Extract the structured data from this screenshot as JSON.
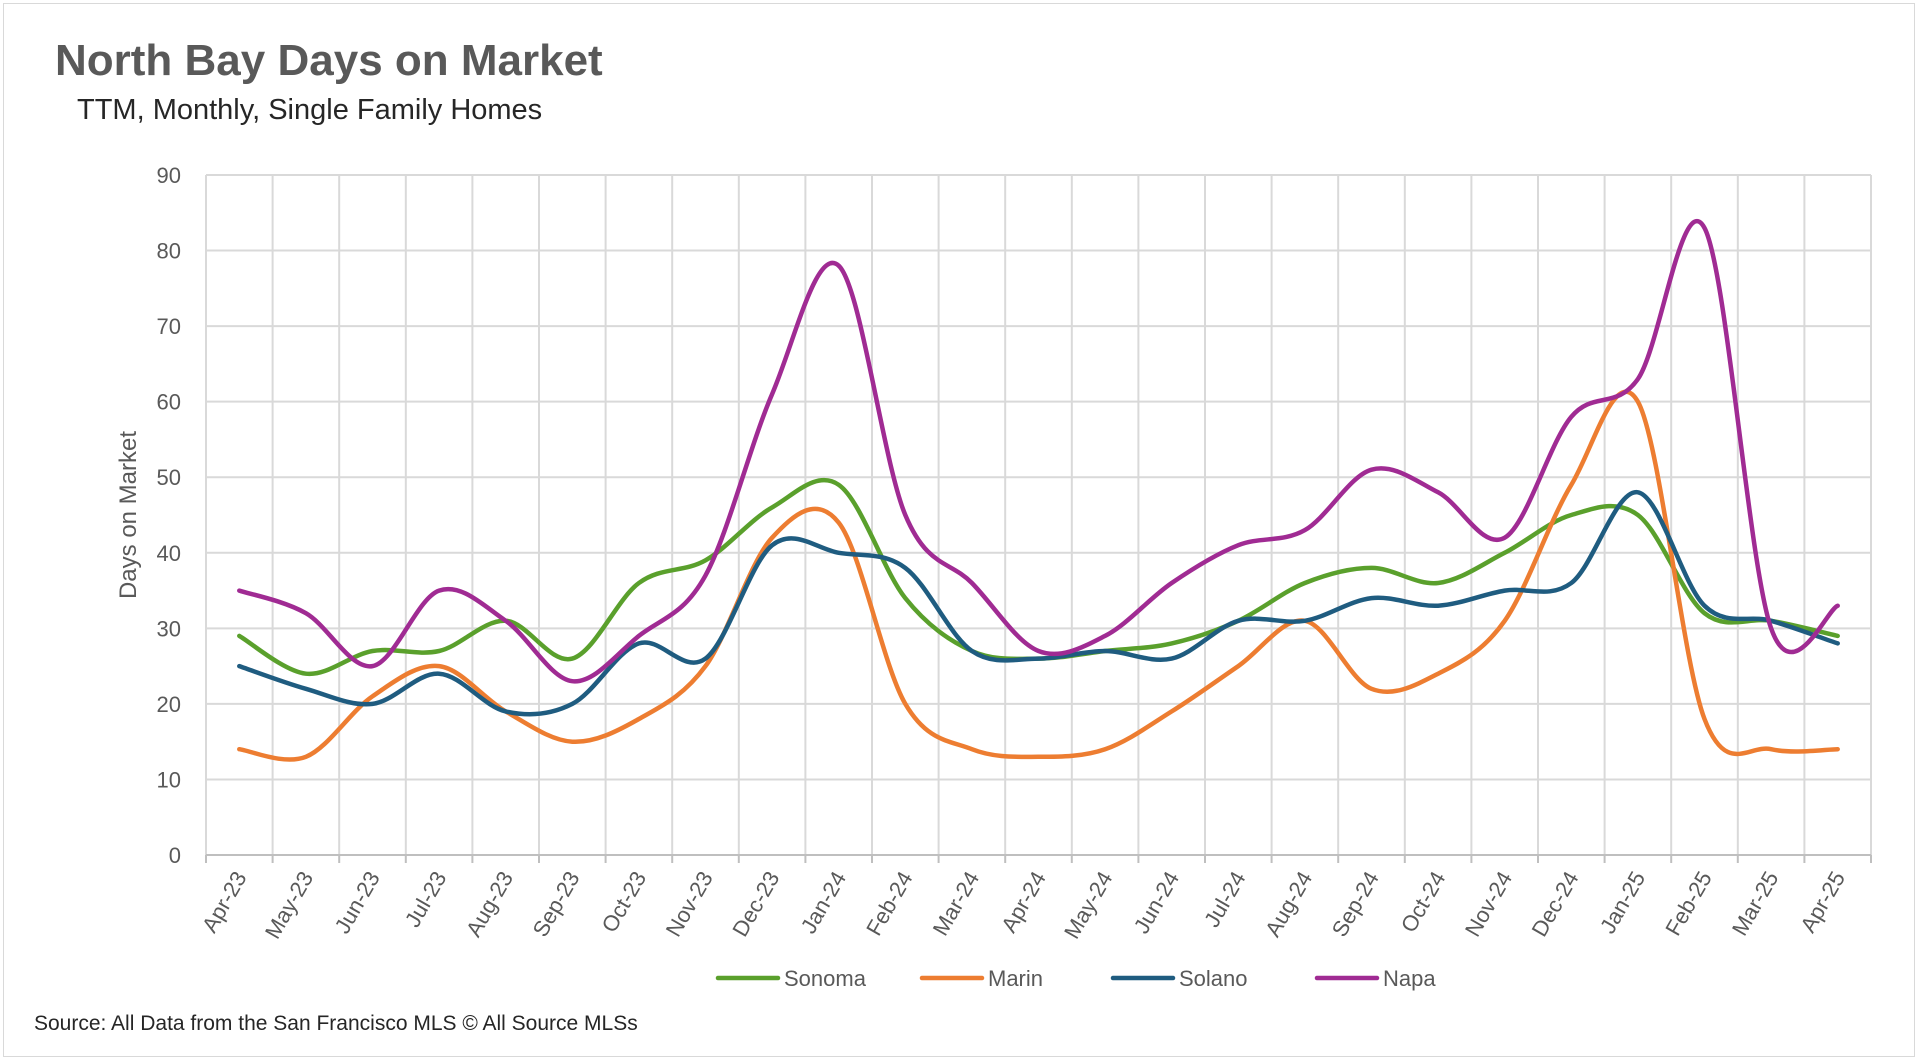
{
  "chart_data": {
    "type": "line",
    "title": "North Bay Days on Market",
    "subtitle": "TTM, Monthly, Single Family Homes",
    "ylabel": "Days on Market",
    "xlabel": "",
    "ylim": [
      0,
      90
    ],
    "yticks": [
      0,
      10,
      20,
      30,
      40,
      50,
      60,
      70,
      80,
      90
    ],
    "grid": true,
    "smooth": true,
    "legend_position": "bottom",
    "categories": [
      "Apr-23",
      "May-23",
      "Jun-23",
      "Jul-23",
      "Aug-23",
      "Sep-23",
      "Oct-23",
      "Nov-23",
      "Dec-23",
      "Jan-24",
      "Feb-24",
      "Mar-24",
      "Apr-24",
      "May-24",
      "Jun-24",
      "Jul-24",
      "Aug-24",
      "Sep-24",
      "Oct-24",
      "Nov-24",
      "Dec-24",
      "Jan-25",
      "Feb-25",
      "Mar-25",
      "Apr-25"
    ],
    "series": [
      {
        "name": "Sonoma",
        "color": "#5aa02c",
        "values": [
          29,
          24,
          27,
          27,
          31,
          26,
          36,
          39,
          46,
          49,
          34,
          27,
          26,
          27,
          28,
          31,
          36,
          38,
          36,
          40,
          45,
          45,
          32,
          31,
          29
        ]
      },
      {
        "name": "Marin",
        "color": "#ed7d31",
        "values": [
          14,
          13,
          21,
          25,
          19,
          15,
          18,
          25,
          42,
          44,
          20,
          14,
          13,
          14,
          19,
          25,
          31,
          22,
          24,
          31,
          49,
          60,
          18,
          14,
          14
        ]
      },
      {
        "name": "Solano",
        "color": "#1f5c80",
        "values": [
          25,
          22,
          20,
          24,
          19,
          20,
          28,
          26,
          41,
          40,
          38,
          27,
          26,
          27,
          26,
          31,
          31,
          34,
          33,
          35,
          36,
          48,
          33,
          31,
          28
        ]
      },
      {
        "name": "Napa",
        "color": "#a02b93",
        "values": [
          35,
          32,
          25,
          35,
          31,
          23,
          29,
          37,
          61,
          78,
          45,
          36,
          27,
          29,
          36,
          41,
          43,
          51,
          48,
          42,
          58,
          63,
          83,
          30,
          33
        ]
      }
    ]
  },
  "footer": {
    "source": "Source: All Data from the San Francisco MLS © All Source MLSs"
  }
}
